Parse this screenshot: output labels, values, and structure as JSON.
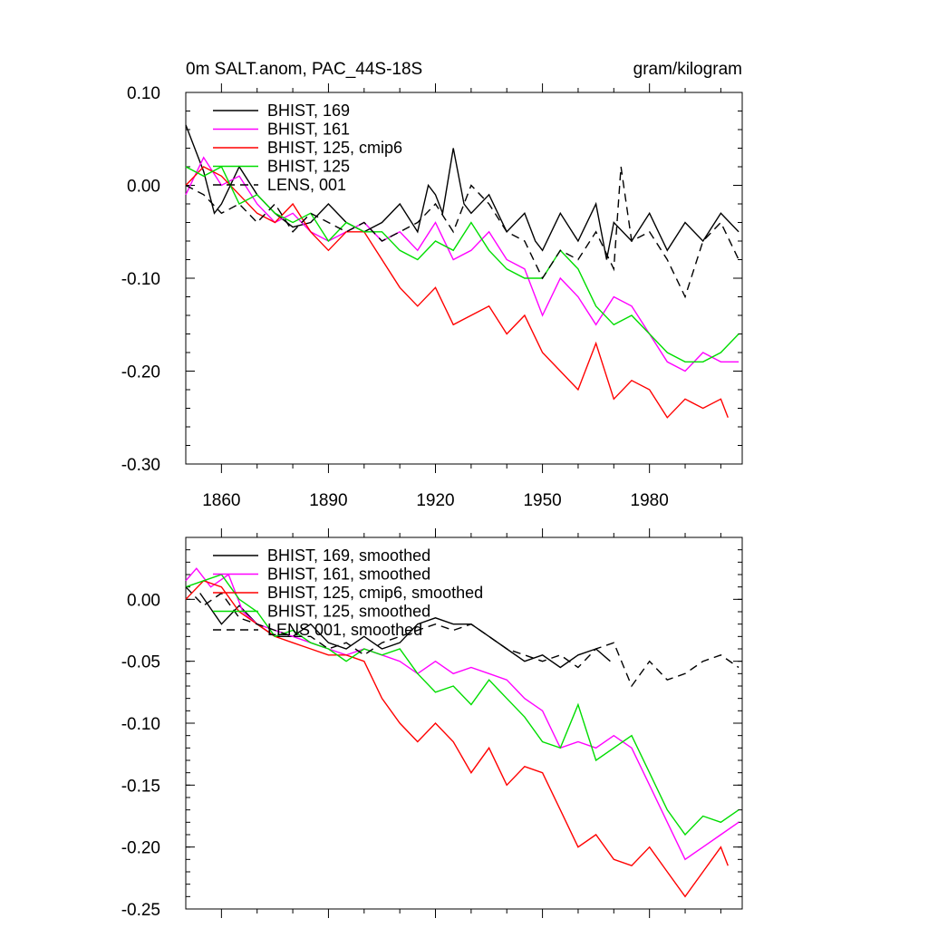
{
  "top": {
    "title_left": "0m SALT.anom, PAC_44S-18S",
    "title_right": "gram/kilogram"
  },
  "chart_data": [
    {
      "type": "line",
      "xlim": [
        1850,
        2006
      ],
      "ylim": [
        -0.3,
        0.1
      ],
      "yticks": [
        "0.10",
        "0.00",
        "-0.10",
        "-0.20",
        "-0.30"
      ],
      "xticks": [
        "1860",
        "1890",
        "1920",
        "1950",
        "1980"
      ],
      "legend_placement": "top-left",
      "series": [
        {
          "name": "BHIST, 169",
          "color": "#000000",
          "dashed": false,
          "x": [
            1850,
            1855,
            1858,
            1860,
            1865,
            1870,
            1875,
            1880,
            1885,
            1890,
            1895,
            1900,
            1905,
            1910,
            1915,
            1918,
            1920,
            1922,
            1925,
            1928,
            1930,
            1935,
            1940,
            1945,
            1948,
            1950,
            1955,
            1960,
            1965,
            1968,
            1970,
            1975,
            1980,
            1985,
            1990,
            1995,
            2000,
            2005
          ],
          "y": [
            0.065,
            0.015,
            -0.03,
            -0.02,
            0.02,
            -0.01,
            -0.03,
            -0.045,
            -0.04,
            -0.02,
            -0.04,
            -0.05,
            -0.04,
            -0.02,
            -0.05,
            0.0,
            -0.01,
            -0.03,
            0.04,
            -0.02,
            -0.03,
            -0.01,
            -0.05,
            -0.03,
            -0.06,
            -0.07,
            -0.03,
            -0.06,
            -0.02,
            -0.08,
            -0.04,
            -0.06,
            -0.03,
            -0.07,
            -0.04,
            -0.06,
            -0.03,
            -0.05
          ]
        },
        {
          "name": "BHIST, 161",
          "color": "#ff00ff",
          "dashed": false,
          "x": [
            1850,
            1855,
            1860,
            1865,
            1870,
            1875,
            1880,
            1885,
            1890,
            1895,
            1900,
            1905,
            1910,
            1915,
            1920,
            1925,
            1930,
            1935,
            1940,
            1945,
            1950,
            1955,
            1960,
            1965,
            1970,
            1975,
            1980,
            1985,
            1990,
            1995,
            2000,
            2005
          ],
          "y": [
            -0.01,
            0.03,
            0.0,
            0.01,
            -0.02,
            -0.04,
            -0.03,
            -0.05,
            -0.06,
            -0.05,
            -0.04,
            -0.06,
            -0.05,
            -0.07,
            -0.04,
            -0.08,
            -0.07,
            -0.05,
            -0.08,
            -0.09,
            -0.14,
            -0.1,
            -0.12,
            -0.15,
            -0.12,
            -0.13,
            -0.16,
            -0.19,
            -0.2,
            -0.18,
            -0.19,
            -0.19
          ]
        },
        {
          "name": "BHIST, 125, cmip6",
          "color": "#ff0000",
          "dashed": false,
          "x": [
            1850,
            1855,
            1860,
            1865,
            1870,
            1875,
            1880,
            1885,
            1890,
            1895,
            1900,
            1905,
            1910,
            1915,
            1920,
            1925,
            1930,
            1935,
            1940,
            1945,
            1950,
            1955,
            1960,
            1965,
            1970,
            1975,
            1980,
            1985,
            1990,
            1995,
            2000,
            2002
          ],
          "y": [
            0.0,
            0.02,
            0.01,
            -0.01,
            -0.03,
            -0.04,
            -0.02,
            -0.05,
            -0.07,
            -0.05,
            -0.05,
            -0.08,
            -0.11,
            -0.13,
            -0.11,
            -0.15,
            -0.14,
            -0.13,
            -0.16,
            -0.14,
            -0.18,
            -0.2,
            -0.22,
            -0.17,
            -0.23,
            -0.21,
            -0.22,
            -0.25,
            -0.23,
            -0.24,
            -0.23,
            -0.25
          ]
        },
        {
          "name": "BHIST, 125",
          "color": "#00dd00",
          "dashed": false,
          "x": [
            1850,
            1855,
            1860,
            1865,
            1870,
            1875,
            1880,
            1885,
            1890,
            1895,
            1900,
            1905,
            1910,
            1915,
            1920,
            1925,
            1930,
            1935,
            1940,
            1945,
            1950,
            1955,
            1960,
            1965,
            1970,
            1975,
            1980,
            1985,
            1990,
            1995,
            2000,
            2005
          ],
          "y": [
            0.02,
            0.01,
            0.02,
            -0.02,
            -0.01,
            -0.03,
            -0.04,
            -0.03,
            -0.06,
            -0.04,
            -0.05,
            -0.05,
            -0.07,
            -0.08,
            -0.06,
            -0.07,
            -0.04,
            -0.07,
            -0.09,
            -0.1,
            -0.1,
            -0.07,
            -0.09,
            -0.13,
            -0.15,
            -0.14,
            -0.16,
            -0.18,
            -0.19,
            -0.19,
            -0.18,
            -0.16
          ]
        },
        {
          "name": "LENS, 001",
          "color": "#000000",
          "dashed": true,
          "x": [
            1850,
            1855,
            1860,
            1865,
            1870,
            1875,
            1880,
            1885,
            1890,
            1895,
            1900,
            1905,
            1910,
            1915,
            1920,
            1925,
            1930,
            1935,
            1940,
            1945,
            1950,
            1955,
            1960,
            1965,
            1970,
            1972,
            1975,
            1980,
            1985,
            1990,
            1995,
            2000,
            2005
          ],
          "y": [
            0.0,
            -0.01,
            -0.03,
            -0.02,
            -0.04,
            -0.02,
            -0.05,
            -0.03,
            -0.04,
            -0.05,
            -0.04,
            -0.06,
            -0.05,
            -0.04,
            -0.02,
            -0.05,
            0.0,
            -0.02,
            -0.05,
            -0.06,
            -0.1,
            -0.07,
            -0.08,
            -0.05,
            -0.09,
            0.02,
            -0.06,
            -0.05,
            -0.08,
            -0.12,
            -0.06,
            -0.04,
            -0.08
          ]
        }
      ]
    },
    {
      "type": "line",
      "xlim": [
        1850,
        2006
      ],
      "ylim": [
        -0.25,
        0.05
      ],
      "yticks": [
        "0.00",
        "-0.05",
        "-0.10",
        "-0.15",
        "-0.20",
        "-0.25"
      ],
      "xticks": [],
      "legend_placement": "top-left",
      "series": [
        {
          "name": "BHIST, 169, smoothed",
          "color": "#000000",
          "dashed": false,
          "x": [
            1854,
            1860,
            1865,
            1870,
            1875,
            1880,
            1885,
            1890,
            1895,
            1900,
            1905,
            1910,
            1915,
            1920,
            1925,
            1930,
            1935,
            1940,
            1945,
            1950,
            1955,
            1960,
            1965,
            1969
          ],
          "y": [
            0.005,
            -0.02,
            -0.005,
            -0.02,
            -0.03,
            -0.03,
            -0.02,
            -0.035,
            -0.04,
            -0.03,
            -0.04,
            -0.035,
            -0.02,
            -0.015,
            -0.02,
            -0.02,
            -0.03,
            -0.04,
            -0.05,
            -0.045,
            -0.055,
            -0.045,
            -0.04,
            -0.05
          ]
        },
        {
          "name": "BHIST, 161, smoothed",
          "color": "#ff00ff",
          "dashed": false,
          "x": [
            1850,
            1853,
            1857,
            1862,
            1866,
            1870,
            1875,
            1880,
            1885,
            1890,
            1895,
            1900,
            1905,
            1910,
            1915,
            1920,
            1925,
            1930,
            1935,
            1940,
            1945,
            1950,
            1955,
            1960,
            1965,
            1970,
            1975,
            1980,
            1985,
            1990,
            1995,
            2000,
            2005
          ],
          "y": [
            0.015,
            0.025,
            0.01,
            0.02,
            -0.01,
            -0.02,
            -0.025,
            -0.03,
            -0.035,
            -0.04,
            -0.045,
            -0.04,
            -0.045,
            -0.05,
            -0.06,
            -0.05,
            -0.06,
            -0.055,
            -0.06,
            -0.065,
            -0.08,
            -0.09,
            -0.12,
            -0.115,
            -0.12,
            -0.11,
            -0.12,
            -0.15,
            -0.18,
            -0.21,
            -0.2,
            -0.19,
            -0.18
          ]
        },
        {
          "name": "BHIST, 125, cmip6, smoothed",
          "color": "#ff0000",
          "dashed": false,
          "x": [
            1850,
            1855,
            1860,
            1865,
            1870,
            1875,
            1880,
            1885,
            1890,
            1895,
            1900,
            1905,
            1910,
            1915,
            1920,
            1925,
            1930,
            1935,
            1940,
            1945,
            1950,
            1955,
            1960,
            1965,
            1970,
            1975,
            1980,
            1985,
            1990,
            1995,
            2000,
            2002
          ],
          "y": [
            0.0,
            0.015,
            0.01,
            -0.01,
            -0.02,
            -0.03,
            -0.035,
            -0.04,
            -0.045,
            -0.045,
            -0.05,
            -0.08,
            -0.1,
            -0.115,
            -0.1,
            -0.115,
            -0.14,
            -0.12,
            -0.15,
            -0.135,
            -0.14,
            -0.17,
            -0.2,
            -0.19,
            -0.21,
            -0.215,
            -0.2,
            -0.22,
            -0.24,
            -0.22,
            -0.2,
            -0.215
          ]
        },
        {
          "name": "BHIST, 125, smoothed",
          "color": "#00dd00",
          "dashed": false,
          "x": [
            1850,
            1855,
            1860,
            1865,
            1870,
            1875,
            1880,
            1885,
            1890,
            1895,
            1900,
            1905,
            1910,
            1915,
            1920,
            1925,
            1930,
            1935,
            1940,
            1945,
            1950,
            1955,
            1960,
            1965,
            1970,
            1975,
            1980,
            1985,
            1990,
            1995,
            2000,
            2005
          ],
          "y": [
            0.01,
            0.015,
            0.02,
            0.0,
            -0.01,
            -0.03,
            -0.025,
            -0.035,
            -0.04,
            -0.05,
            -0.04,
            -0.045,
            -0.04,
            -0.06,
            -0.075,
            -0.07,
            -0.085,
            -0.065,
            -0.08,
            -0.095,
            -0.115,
            -0.12,
            -0.085,
            -0.13,
            -0.12,
            -0.11,
            -0.14,
            -0.17,
            -0.19,
            -0.175,
            -0.18,
            -0.17
          ]
        },
        {
          "name": "LENS 001, smoothed",
          "color": "#000000",
          "dashed": true,
          "x": [
            1850,
            1855,
            1860,
            1865,
            1870,
            1875,
            1880,
            1885,
            1890,
            1895,
            1900,
            1905,
            1910,
            1915,
            1920,
            1925,
            1930,
            1935,
            1940,
            1945,
            1950,
            1955,
            1960,
            1965,
            1970,
            1975,
            1980,
            1985,
            1990,
            1995,
            2000,
            2005
          ],
          "y": [
            0.01,
            -0.005,
            0.005,
            -0.015,
            -0.02,
            -0.025,
            -0.03,
            -0.03,
            -0.04,
            -0.035,
            -0.045,
            -0.035,
            -0.03,
            -0.025,
            -0.02,
            -0.025,
            -0.02,
            -0.03,
            -0.04,
            -0.045,
            -0.05,
            -0.045,
            -0.055,
            -0.04,
            -0.035,
            -0.07,
            -0.05,
            -0.065,
            -0.06,
            -0.05,
            -0.045,
            -0.055
          ]
        }
      ]
    }
  ]
}
